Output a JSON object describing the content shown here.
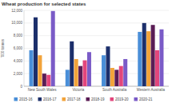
{
  "chart_data": {
    "type": "bar",
    "title": "Wheat production for selected states",
    "y_label": "'000 tonnes",
    "categories": [
      "New South Wales",
      "Victoria",
      "South Australia",
      "Western Australia"
    ],
    "series": [
      {
        "name": "2015-16",
        "color": "#4a8fd8",
        "values": [
          5700,
          2600,
          4900,
          8600
        ]
      },
      {
        "name": "2016-17",
        "color": "#1c2f6b",
        "values": [
          10900,
          7100,
          6300,
          10000
        ]
      },
      {
        "name": "2017-18",
        "color": "#f2a33a",
        "values": [
          4900,
          4300,
          2900,
          8700
        ]
      },
      {
        "name": "2018-19",
        "color": "#5a1d55",
        "values": [
          2000,
          3200,
          2600,
          9700
        ]
      },
      {
        "name": "2019-20",
        "color": "#e2467c",
        "values": [
          1800,
          4100,
          3200,
          5700
        ]
      },
      {
        "name": "2020-21",
        "color": "#7a5bc7",
        "values": [
          11900,
          5400,
          4300,
          9000
        ]
      }
    ],
    "ylim": [
      0,
      12000
    ],
    "yticks": [
      0,
      {
        "value": 2000,
        "label": "2,000"
      },
      {
        "value": 4000,
        "label": "4,000"
      },
      {
        "value": 6000,
        "label": "6,000"
      },
      {
        "value": 8000,
        "label": "8,000"
      },
      {
        "value": 10000,
        "label": "10,000"
      },
      {
        "value": 12000,
        "label": "12,000"
      }
    ],
    "grid": true,
    "legend": "bottom"
  }
}
